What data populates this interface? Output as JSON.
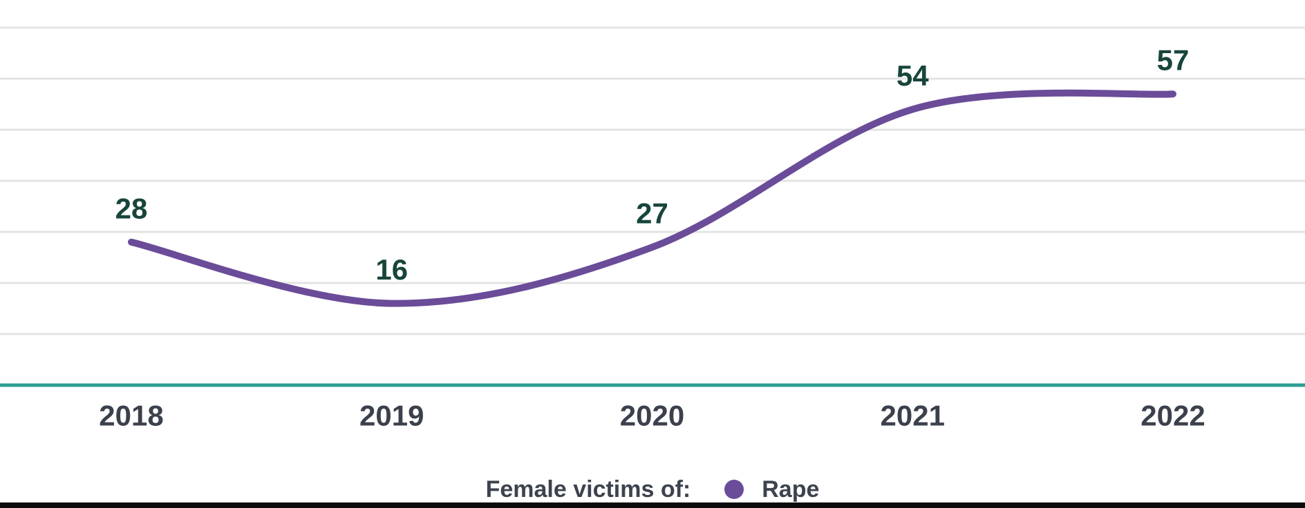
{
  "chart_data": {
    "type": "line",
    "title": "",
    "xlabel": "",
    "ylabel": "",
    "x": [
      "2018",
      "2019",
      "2020",
      "2021",
      "2022"
    ],
    "series": [
      {
        "name": "Rape",
        "values": [
          28,
          16,
          27,
          54,
          57
        ],
        "color": "#6a4c99"
      }
    ],
    "point_labels": [
      "28",
      "16",
      "27",
      "54",
      "57"
    ],
    "ylim": [
      0,
      70
    ],
    "grid_step": 10,
    "grid": "horizontal",
    "y_tick_labels_shown": false,
    "smoothing": "spline",
    "legend_position": "bottom"
  },
  "legend": {
    "prefix": "Female victims of:"
  },
  "colors": {
    "series": "#6a4c99",
    "grid": "#e3e3e3",
    "axis_baseline": "#2a9d94",
    "data_label": "#17453b",
    "tick_label": "#3b414c",
    "legend_text": "#3d434e",
    "bottom_bar": "#0b0b0c",
    "background": "#ffffff"
  }
}
